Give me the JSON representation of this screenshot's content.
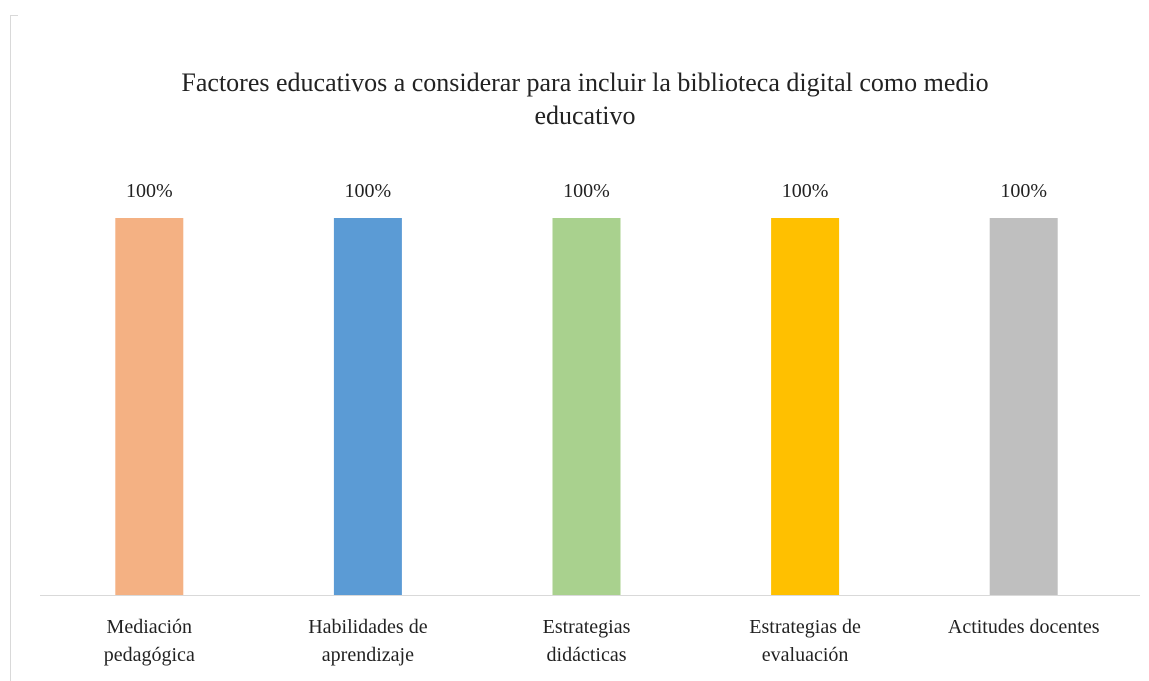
{
  "chart_data": {
    "type": "bar",
    "title": "Factores educativos a considerar para incluir la biblioteca digital como medio educativo",
    "categories": [
      "Mediación\npedagógica",
      "Habilidades de\naprendizaje",
      "Estrategias\ndidácticas",
      "Estrategias de\nevaluación",
      "Actitudes docentes"
    ],
    "values": [
      100,
      100,
      100,
      100,
      100
    ],
    "value_labels": [
      "100%",
      "100%",
      "100%",
      "100%",
      "100%"
    ],
    "colors": [
      "#f4b183",
      "#5b9bd5",
      "#a9d18e",
      "#ffc000",
      "#bfbfbf"
    ],
    "ylim": [
      0,
      100
    ]
  }
}
